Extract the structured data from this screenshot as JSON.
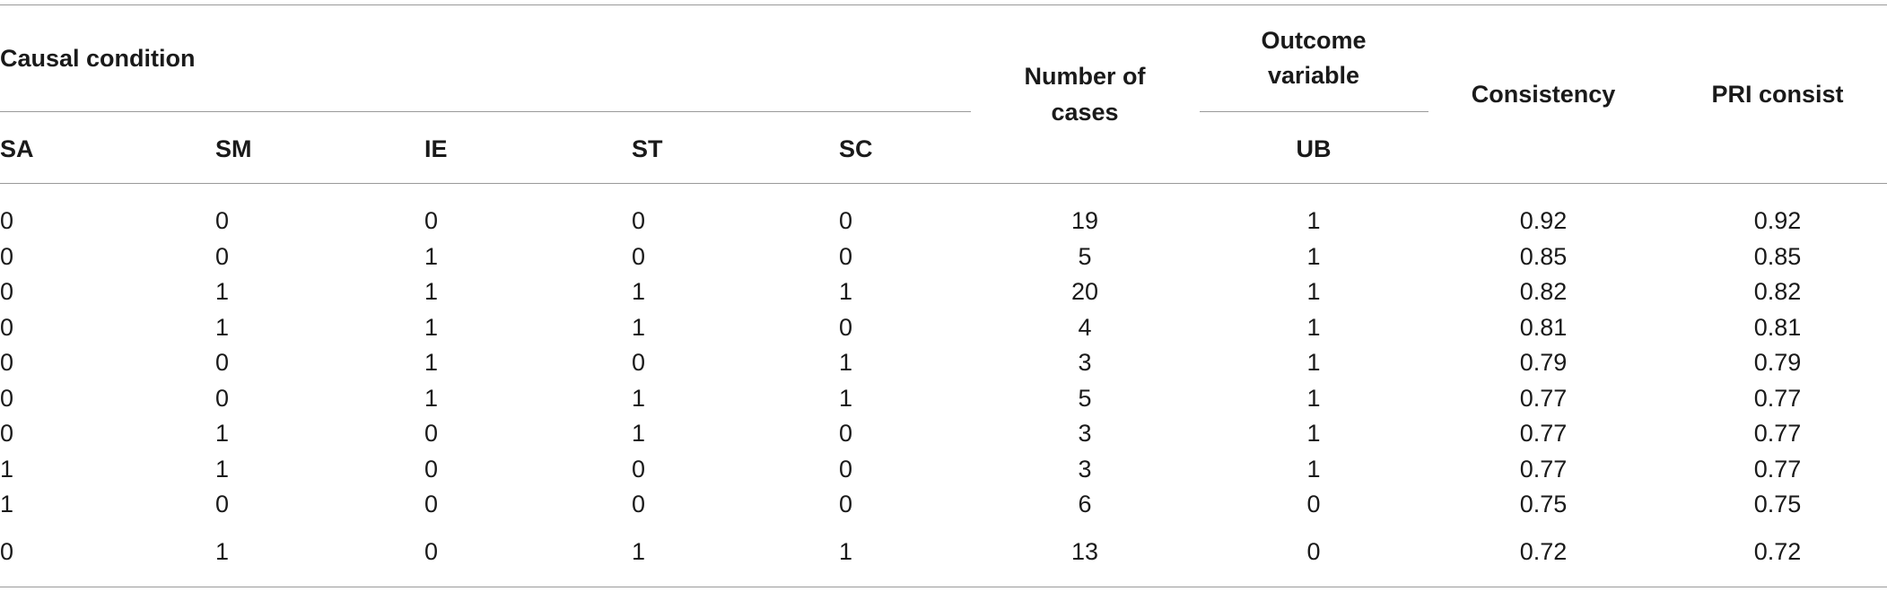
{
  "table": {
    "group_headers": {
      "causal_condition": "Causal condition",
      "outcome_variable_line1": "Outcome",
      "outcome_variable_line2": "variable"
    },
    "headers": {
      "number_of_cases_line1": "Number of",
      "number_of_cases_line2": "cases",
      "consistency": "Consistency",
      "pri_consist": "PRI consist",
      "sa": "SA",
      "sm": "SM",
      "ie": "IE",
      "st": "ST",
      "sc": "SC",
      "ub": "UB"
    },
    "rows": [
      [
        "0",
        "0",
        "0",
        "0",
        "0",
        "19",
        "1",
        "0.92",
        "0.92"
      ],
      [
        "0",
        "0",
        "1",
        "0",
        "0",
        "5",
        "1",
        "0.85",
        "0.85"
      ],
      [
        "0",
        "1",
        "1",
        "1",
        "1",
        "20",
        "1",
        "0.82",
        "0.82"
      ],
      [
        "0",
        "1",
        "1",
        "1",
        "0",
        "4",
        "1",
        "0.81",
        "0.81"
      ],
      [
        "0",
        "0",
        "1",
        "0",
        "1",
        "3",
        "1",
        "0.79",
        "0.79"
      ],
      [
        "0",
        "0",
        "1",
        "1",
        "1",
        "5",
        "1",
        "0.77",
        "0.77"
      ],
      [
        "0",
        "1",
        "0",
        "1",
        "0",
        "3",
        "1",
        "0.77",
        "0.77"
      ],
      [
        "1",
        "1",
        "0",
        "0",
        "0",
        "3",
        "1",
        "0.77",
        "0.77"
      ],
      [
        "1",
        "0",
        "0",
        "0",
        "0",
        "6",
        "0",
        "0.75",
        "0.75"
      ],
      [
        "0",
        "1",
        "0",
        "1",
        "1",
        "13",
        "0",
        "0.72",
        "0.72"
      ]
    ]
  }
}
